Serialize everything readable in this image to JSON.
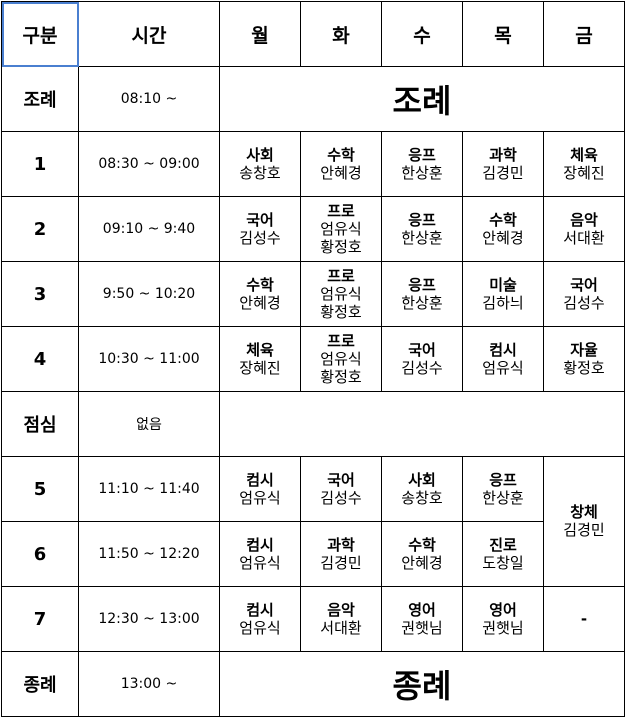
{
  "header": {
    "category": "구분",
    "time": "시간",
    "days": [
      "월",
      "화",
      "수",
      "목",
      "금"
    ]
  },
  "assembly": {
    "label": "조례",
    "time": "08:10 ~",
    "text": "조례"
  },
  "periods": [
    {
      "label": "1",
      "time": "08:30 ~ 09:00",
      "cells": [
        {
          "subject": "사회",
          "teachers": [
            "송창호"
          ]
        },
        {
          "subject": "수학",
          "teachers": [
            "안혜경"
          ]
        },
        {
          "subject": "응프",
          "teachers": [
            "한상훈"
          ]
        },
        {
          "subject": "과학",
          "teachers": [
            "김경민"
          ]
        },
        {
          "subject": "체육",
          "teachers": [
            "장혜진"
          ]
        }
      ]
    },
    {
      "label": "2",
      "time": "09:10 ~ 9:40",
      "cells": [
        {
          "subject": "국어",
          "teachers": [
            "김성수"
          ]
        },
        {
          "subject": "프로",
          "teachers": [
            "엄유식",
            "황정호"
          ]
        },
        {
          "subject": "응프",
          "teachers": [
            "한상훈"
          ]
        },
        {
          "subject": "수학",
          "teachers": [
            "안혜경"
          ]
        },
        {
          "subject": "음악",
          "teachers": [
            "서대환"
          ]
        }
      ]
    },
    {
      "label": "3",
      "time": "9:50 ~ 10:20",
      "cells": [
        {
          "subject": "수학",
          "teachers": [
            "안혜경"
          ]
        },
        {
          "subject": "프로",
          "teachers": [
            "엄유식",
            "황정호"
          ]
        },
        {
          "subject": "응프",
          "teachers": [
            "한상훈"
          ]
        },
        {
          "subject": "미술",
          "teachers": [
            "김하늬"
          ]
        },
        {
          "subject": "국어",
          "teachers": [
            "김성수"
          ]
        }
      ]
    },
    {
      "label": "4",
      "time": "10:30 ~ 11:00",
      "cells": [
        {
          "subject": "체육",
          "teachers": [
            "장혜진"
          ]
        },
        {
          "subject": "프로",
          "teachers": [
            "엄유식",
            "황정호"
          ]
        },
        {
          "subject": "국어",
          "teachers": [
            "김성수"
          ]
        },
        {
          "subject": "컴시",
          "teachers": [
            "엄유식"
          ]
        },
        {
          "subject": "자율",
          "teachers": [
            "황정호"
          ]
        }
      ]
    }
  ],
  "lunch": {
    "label": "점심",
    "time": "없음"
  },
  "afternoon": [
    {
      "label": "5",
      "time": "11:10 ~ 11:40",
      "cells": [
        {
          "subject": "컴시",
          "teachers": [
            "엄유식"
          ]
        },
        {
          "subject": "국어",
          "teachers": [
            "김성수"
          ]
        },
        {
          "subject": "사회",
          "teachers": [
            "송창호"
          ]
        },
        {
          "subject": "응프",
          "teachers": [
            "한상훈"
          ]
        }
      ]
    },
    {
      "label": "6",
      "time": "11:50 ~ 12:20",
      "cells": [
        {
          "subject": "컴시",
          "teachers": [
            "엄유식"
          ]
        },
        {
          "subject": "과학",
          "teachers": [
            "김경민"
          ]
        },
        {
          "subject": "수학",
          "teachers": [
            "안혜경"
          ]
        },
        {
          "subject": "진로",
          "teachers": [
            "도창일"
          ]
        }
      ]
    },
    {
      "label": "7",
      "time": "12:30 ~ 13:00",
      "cells": [
        {
          "subject": "컴시",
          "teachers": [
            "엄유식"
          ]
        },
        {
          "subject": "음악",
          "teachers": [
            "서대환"
          ]
        },
        {
          "subject": "영어",
          "teachers": [
            "권햇님"
          ]
        },
        {
          "subject": "영어",
          "teachers": [
            "권햇님"
          ]
        }
      ]
    }
  ],
  "friday_afternoon": {
    "subject": "창체",
    "teachers": [
      "김경민"
    ],
    "period7": "-"
  },
  "closing": {
    "label": "종례",
    "time": "13:00 ~",
    "text": "종례"
  }
}
